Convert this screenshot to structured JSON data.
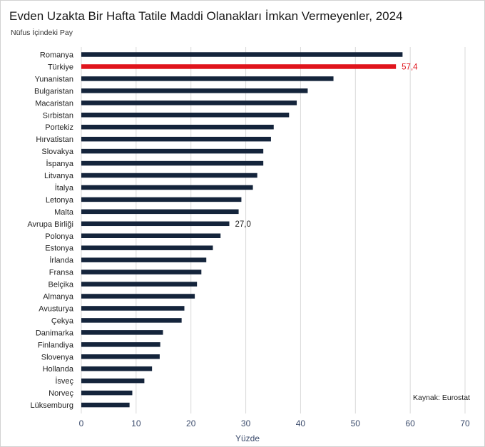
{
  "title": "Evden Uzakta Bir Hafta Tatile Maddi Olanakları İmkan Vermeyenler, 2024",
  "subtitle": "Nüfus İçindeki Pay",
  "source": "Kaynak: Eurostat",
  "colors": {
    "bar": "#14243b",
    "highlight": "#e0141c",
    "grid": "#d9d9d9"
  },
  "chart_data": {
    "type": "bar",
    "orientation": "horizontal",
    "title": "Evden Uzakta Bir Hafta Tatile Maddi Olanakları İmkan Vermeyenler, 2024",
    "xlabel": "Yüzde",
    "ylabel": "",
    "xlim": [
      0,
      70
    ],
    "xticks": [
      0,
      10,
      20,
      30,
      40,
      50,
      60,
      70
    ],
    "grid": true,
    "categories": [
      "Romanya",
      "Türkiye",
      "Yunanistan",
      "Bulgaristan",
      "Macaristan",
      "Sırbistan",
      "Portekiz",
      "Hırvatistan",
      "Slovakya",
      "İspanya",
      "Litvanya",
      "İtalya",
      "Letonya",
      "Malta",
      "Avrupa Birliği",
      "Polonya",
      "Estonya",
      "İrlanda",
      "Fransa",
      "Belçika",
      "Almanya",
      "Avusturya",
      "Çekya",
      "Danimarka",
      "Finlandiya",
      "Slovenya",
      "Hollanda",
      "İsveç",
      "Norveç",
      "Lüksemburg"
    ],
    "values": [
      58.6,
      57.4,
      46.0,
      41.3,
      39.3,
      37.9,
      35.1,
      34.6,
      33.2,
      33.2,
      32.1,
      31.3,
      29.2,
      28.7,
      27.0,
      25.4,
      24.0,
      22.8,
      21.9,
      21.1,
      20.7,
      18.8,
      18.3,
      14.9,
      14.4,
      14.3,
      12.9,
      11.5,
      9.3,
      8.8
    ],
    "highlight": "Türkiye",
    "data_labels": [
      {
        "category": "Türkiye",
        "text": "57,4"
      },
      {
        "category": "Avrupa Birliği",
        "text": "27,0"
      }
    ]
  }
}
